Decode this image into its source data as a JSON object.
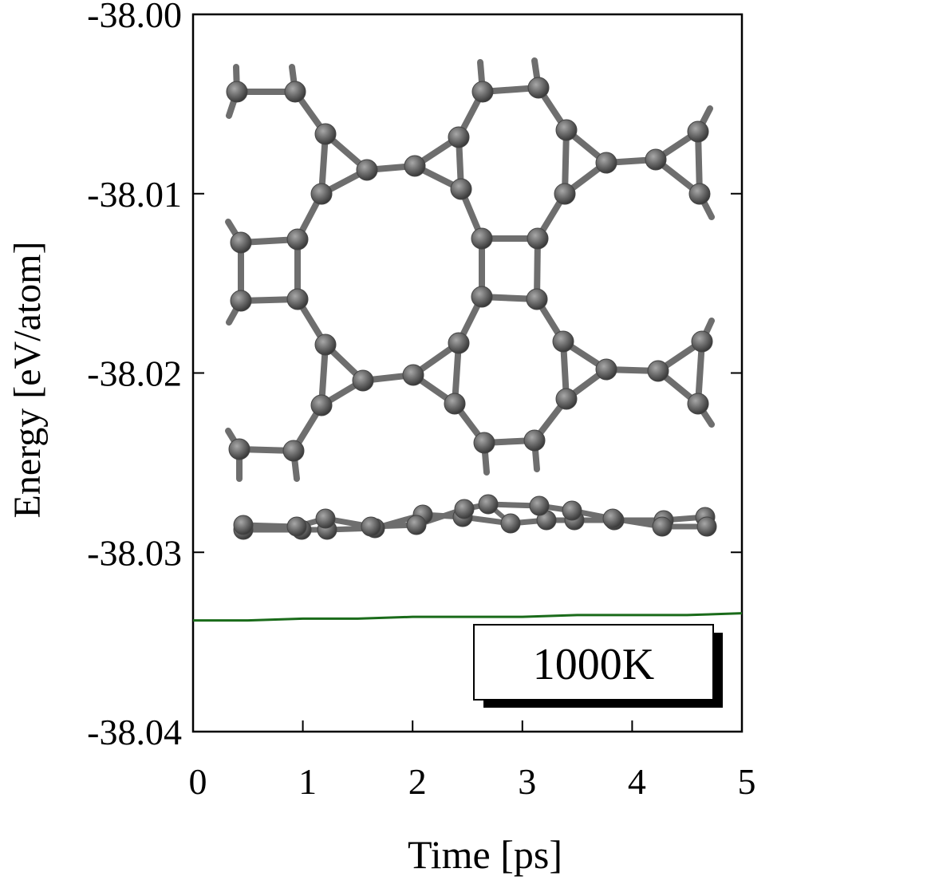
{
  "chart_data": {
    "type": "line",
    "title": "",
    "xlabel": "Time [ps]",
    "ylabel": "Energy [eV/atom]",
    "xlim": [
      0,
      5
    ],
    "ylim": [
      -38.04,
      -38.0
    ],
    "x_ticks": [
      0,
      1,
      2,
      3,
      4,
      5
    ],
    "x_tick_labels": [
      "0",
      "1",
      "2",
      "3",
      "4",
      "5"
    ],
    "y_ticks": [
      -38.0,
      -38.01,
      -38.02,
      -38.03,
      -38.04
    ],
    "y_tick_labels": [
      "-38.00",
      "-38.01",
      "-38.02",
      "-38.03",
      "-38.04"
    ],
    "grid": false,
    "legend": null,
    "annotation": "1000K",
    "series": [
      {
        "color": "#1a6b1a",
        "x": [
          0,
          0.5,
          1,
          1.5,
          2,
          2.5,
          3,
          3.5,
          4,
          4.5,
          5
        ],
        "y": [
          -38.0338,
          -38.0338,
          -38.0337,
          -38.0337,
          -38.0336,
          -38.0336,
          -38.0336,
          -38.0335,
          -38.0335,
          -38.0335,
          -38.0334
        ]
      }
    ],
    "inset": {
      "description_icon": "carbon-lattice-structure",
      "atom_color": "#6e6e6e",
      "bond_color": "#6e6e6e"
    }
  }
}
